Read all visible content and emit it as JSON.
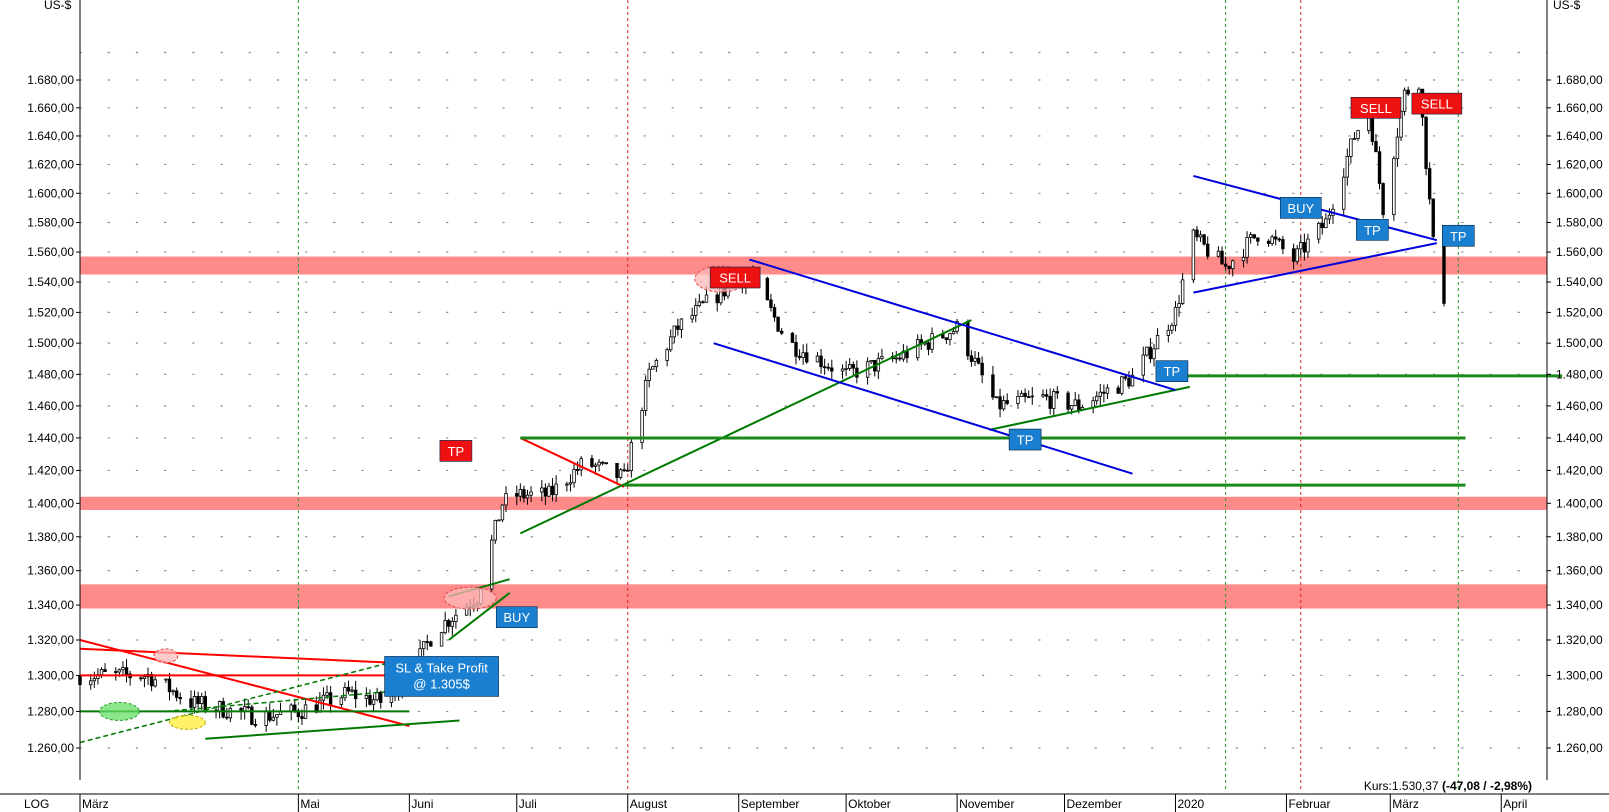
{
  "chart_data": {
    "type": "candlestick",
    "currency_label": "US-$",
    "scale_label": "LOG",
    "price_range": [
      1250,
      1700
    ],
    "y_ticks": [
      "1.260,00",
      "1.280,00",
      "1.300,00",
      "1.320,00",
      "1.340,00",
      "1.360,00",
      "1.380,00",
      "1.400,00",
      "1.420,00",
      "1.440,00",
      "1.460,00",
      "1.480,00",
      "1.500,00",
      "1.520,00",
      "1.540,00",
      "1.560,00",
      "1.580,00",
      "1.600,00",
      "1.620,00",
      "1.640,00",
      "1.660,00",
      "1.680,00"
    ],
    "y_tick_values": [
      1260,
      1280,
      1300,
      1320,
      1340,
      1360,
      1380,
      1400,
      1420,
      1440,
      1460,
      1480,
      1500,
      1520,
      1540,
      1560,
      1580,
      1600,
      1620,
      1640,
      1660,
      1680
    ],
    "months": [
      "März",
      "Mai",
      "Juni",
      "Juli",
      "August",
      "September",
      "Oktober",
      "November",
      "Dezember",
      "2020",
      "Februar",
      "März",
      "April"
    ],
    "month_dates": [
      "2019-03-01",
      "2019-05-01",
      "2019-06-01",
      "2019-07-01",
      "2019-08-01",
      "2019-09-01",
      "2019-10-01",
      "2019-11-01",
      "2019-12-01",
      "2020-01-01",
      "2020-02-01",
      "2020-03-01",
      "2020-04-01"
    ],
    "quote": {
      "label": "Kurs:",
      "value": "1.530,37",
      "change": "(-47,08 / -2,98%)"
    },
    "resistance_zones": [
      {
        "from": 1545,
        "to": 1557
      },
      {
        "from": 1396,
        "to": 1404
      },
      {
        "from": 1338,
        "to": 1352
      }
    ],
    "price_path": [
      {
        "date": "2019-03-01",
        "close": 1300
      },
      {
        "date": "2019-03-20",
        "close": 1300
      },
      {
        "date": "2019-04-01",
        "close": 1285
      },
      {
        "date": "2019-04-20",
        "close": 1277
      },
      {
        "date": "2019-05-01",
        "close": 1280
      },
      {
        "date": "2019-05-15",
        "close": 1290
      },
      {
        "date": "2019-05-25",
        "close": 1285
      },
      {
        "date": "2019-06-01",
        "close": 1300
      },
      {
        "date": "2019-06-08",
        "close": 1325
      },
      {
        "date": "2019-06-20",
        "close": 1345
      },
      {
        "date": "2019-06-27",
        "close": 1400
      },
      {
        "date": "2019-07-01",
        "close": 1405
      },
      {
        "date": "2019-07-10",
        "close": 1405
      },
      {
        "date": "2019-07-20",
        "close": 1425
      },
      {
        "date": "2019-07-31",
        "close": 1415
      },
      {
        "date": "2019-08-07",
        "close": 1480
      },
      {
        "date": "2019-08-15",
        "close": 1510
      },
      {
        "date": "2019-08-25",
        "close": 1530
      },
      {
        "date": "2019-09-04",
        "close": 1545
      },
      {
        "date": "2019-09-15",
        "close": 1500
      },
      {
        "date": "2019-10-01",
        "close": 1480
      },
      {
        "date": "2019-10-15",
        "close": 1490
      },
      {
        "date": "2019-11-01",
        "close": 1510
      },
      {
        "date": "2019-11-12",
        "close": 1460
      },
      {
        "date": "2019-11-25",
        "close": 1465
      },
      {
        "date": "2019-12-05",
        "close": 1460
      },
      {
        "date": "2019-12-20",
        "close": 1478
      },
      {
        "date": "2020-01-01",
        "close": 1520
      },
      {
        "date": "2020-01-06",
        "close": 1570
      },
      {
        "date": "2020-01-15",
        "close": 1550
      },
      {
        "date": "2020-01-25",
        "close": 1575
      },
      {
        "date": "2020-02-03",
        "close": 1555
      },
      {
        "date": "2020-02-12",
        "close": 1580
      },
      {
        "date": "2020-02-20",
        "close": 1640
      },
      {
        "date": "2020-02-24",
        "close": 1660
      },
      {
        "date": "2020-02-28",
        "close": 1590
      },
      {
        "date": "2020-03-05",
        "close": 1670
      },
      {
        "date": "2020-03-09",
        "close": 1680
      },
      {
        "date": "2020-03-13",
        "close": 1565
      },
      {
        "date": "2020-03-16",
        "close": 1530
      }
    ],
    "trendlines": [
      {
        "color": "#ff0000",
        "p1": {
          "date": "2019-03-01",
          "price": 1320
        },
        "p2": {
          "date": "2019-06-01",
          "price": 1272
        }
      },
      {
        "color": "#ff0000",
        "p1": {
          "date": "2019-03-01",
          "price": 1315
        },
        "p2": {
          "date": "2019-06-20",
          "price": 1305
        }
      },
      {
        "color": "#ff0000",
        "p1": {
          "date": "2019-03-01",
          "price": 1300
        },
        "p2": {
          "date": "2019-06-20",
          "price": 1300
        }
      },
      {
        "color": "#007a00",
        "p1": {
          "date": "2019-03-01",
          "price": 1280
        },
        "p2": {
          "date": "2019-06-01",
          "price": 1280
        }
      },
      {
        "color": "#007a00",
        "p1": {
          "date": "2019-04-05",
          "price": 1265
        },
        "p2": {
          "date": "2019-06-15",
          "price": 1275
        }
      },
      {
        "color": "#007a00",
        "p1": {
          "date": "2019-06-12",
          "price": 1320
        },
        "p2": {
          "date": "2019-06-29",
          "price": 1347
        }
      },
      {
        "color": "#007a00",
        "p1": {
          "date": "2019-06-12",
          "price": 1345
        },
        "p2": {
          "date": "2019-06-29",
          "price": 1355
        }
      },
      {
        "color": "#ff0000",
        "p1": {
          "date": "2019-07-02",
          "price": 1440
        },
        "p2": {
          "date": "2019-07-31",
          "price": 1410
        }
      },
      {
        "color": "#007a00",
        "p1": {
          "date": "2019-07-02",
          "price": 1382
        },
        "p2": {
          "date": "2019-11-05",
          "price": 1515
        }
      },
      {
        "color": "#007a00",
        "p1": {
          "date": "2019-11-10",
          "price": 1445
        },
        "p2": {
          "date": "2020-01-05",
          "price": 1472
        }
      },
      {
        "color": "#0000dd",
        "p1": {
          "date": "2019-09-04",
          "price": 1555
        },
        "p2": {
          "date": "2020-01-01",
          "price": 1470
        }
      },
      {
        "color": "#0000dd",
        "p1": {
          "date": "2019-08-25",
          "price": 1500
        },
        "p2": {
          "date": "2019-12-20",
          "price": 1418
        }
      },
      {
        "color": "#0000dd",
        "p1": {
          "date": "2020-01-06",
          "price": 1612
        },
        "p2": {
          "date": "2020-03-14",
          "price": 1568
        }
      },
      {
        "color": "#0000dd",
        "p1": {
          "date": "2020-01-06",
          "price": 1533
        },
        "p2": {
          "date": "2020-03-14",
          "price": 1566
        }
      }
    ],
    "horizontal_levels": [
      {
        "price": 1440,
        "from": "2019-07-02",
        "to": "2020-03-22"
      },
      {
        "price": 1411,
        "from": "2019-07-31",
        "to": "2020-03-22"
      },
      {
        "price": 1479,
        "from": "2020-01-01",
        "to": "2020-04-18"
      }
    ],
    "annotations": [
      {
        "text": "SELL",
        "kind": "sell",
        "date": "2019-08-31",
        "price": 1543
      },
      {
        "text": "TP",
        "kind": "tp-red",
        "date": "2019-06-14",
        "price": 1432
      },
      {
        "text": "BUY",
        "kind": "buy",
        "date": "2019-07-01",
        "price": 1333
      },
      {
        "text": "TP",
        "kind": "tp",
        "date": "2019-11-20",
        "price": 1439
      },
      {
        "text": "TP",
        "kind": "tp",
        "date": "2019-12-31",
        "price": 1482
      },
      {
        "text": "BUY",
        "kind": "buy",
        "date": "2020-02-05",
        "price": 1590
      },
      {
        "text": "TP",
        "kind": "tp",
        "date": "2020-02-25",
        "price": 1575
      },
      {
        "text": "SELL",
        "kind": "sell",
        "date": "2020-02-26",
        "price": 1660
      },
      {
        "text": "SELL",
        "kind": "sell",
        "date": "2020-03-14",
        "price": 1663
      },
      {
        "text": "TP",
        "kind": "tp",
        "date": "2020-03-20",
        "price": 1571
      }
    ],
    "note": {
      "lines": [
        "SL & Take Profit",
        "@ 1.305$"
      ],
      "date": "2019-06-10",
      "price": 1300
    }
  }
}
